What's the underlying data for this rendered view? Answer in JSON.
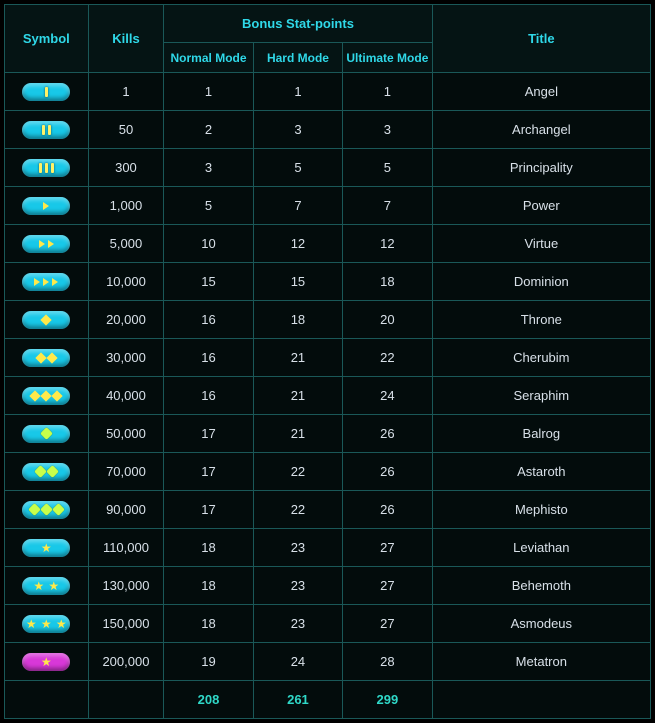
{
  "headers": {
    "symbol": "Symbol",
    "kills": "Kills",
    "bonus": "Bonus Stat-points",
    "normal": "Normal Mode",
    "hard": "Hard Mode",
    "ultimate": "Ultimate Mode",
    "title": "Title"
  },
  "pill_colors": {
    "cyan": "#18c8e8",
    "magenta": "#d838d8"
  },
  "glyph_colors": {
    "bar": "#fff266",
    "chev": "#ffe94a",
    "diam": "#ffe94a",
    "burst": "#c8ff4a",
    "star": "#ffe94a"
  },
  "rows": [
    {
      "pill": "cyan",
      "glyph": "bar",
      "count": 1,
      "kills": "1",
      "normal": "1",
      "hard": "1",
      "ultimate": "1",
      "title": "Angel"
    },
    {
      "pill": "cyan",
      "glyph": "bar",
      "count": 2,
      "kills": "50",
      "normal": "2",
      "hard": "3",
      "ultimate": "3",
      "title": "Archangel"
    },
    {
      "pill": "cyan",
      "glyph": "bar",
      "count": 3,
      "kills": "300",
      "normal": "3",
      "hard": "5",
      "ultimate": "5",
      "title": "Principality"
    },
    {
      "pill": "cyan",
      "glyph": "chev",
      "count": 1,
      "kills": "1,000",
      "normal": "5",
      "hard": "7",
      "ultimate": "7",
      "title": "Power"
    },
    {
      "pill": "cyan",
      "glyph": "chev",
      "count": 2,
      "kills": "5,000",
      "normal": "10",
      "hard": "12",
      "ultimate": "12",
      "title": "Virtue"
    },
    {
      "pill": "cyan",
      "glyph": "chev",
      "count": 3,
      "kills": "10,000",
      "normal": "15",
      "hard": "15",
      "ultimate": "18",
      "title": "Dominion"
    },
    {
      "pill": "cyan",
      "glyph": "diam",
      "count": 1,
      "kills": "20,000",
      "normal": "16",
      "hard": "18",
      "ultimate": "20",
      "title": "Throne"
    },
    {
      "pill": "cyan",
      "glyph": "diam",
      "count": 2,
      "kills": "30,000",
      "normal": "16",
      "hard": "21",
      "ultimate": "22",
      "title": "Cherubim"
    },
    {
      "pill": "cyan",
      "glyph": "diam",
      "count": 3,
      "kills": "40,000",
      "normal": "16",
      "hard": "21",
      "ultimate": "24",
      "title": "Seraphim"
    },
    {
      "pill": "cyan",
      "glyph": "burst",
      "count": 1,
      "kills": "50,000",
      "normal": "17",
      "hard": "21",
      "ultimate": "26",
      "title": "Balrog"
    },
    {
      "pill": "cyan",
      "glyph": "burst",
      "count": 2,
      "kills": "70,000",
      "normal": "17",
      "hard": "22",
      "ultimate": "26",
      "title": "Astaroth"
    },
    {
      "pill": "cyan",
      "glyph": "burst",
      "count": 3,
      "kills": "90,000",
      "normal": "17",
      "hard": "22",
      "ultimate": "26",
      "title": "Mephisto"
    },
    {
      "pill": "cyan",
      "glyph": "star",
      "count": 1,
      "kills": "110,000",
      "normal": "18",
      "hard": "23",
      "ultimate": "27",
      "title": "Leviathan"
    },
    {
      "pill": "cyan",
      "glyph": "star",
      "count": 2,
      "kills": "130,000",
      "normal": "18",
      "hard": "23",
      "ultimate": "27",
      "title": "Behemoth"
    },
    {
      "pill": "cyan",
      "glyph": "star",
      "count": 3,
      "kills": "150,000",
      "normal": "18",
      "hard": "23",
      "ultimate": "27",
      "title": "Asmodeus"
    },
    {
      "pill": "magenta",
      "glyph": "star",
      "count": 1,
      "kills": "200,000",
      "normal": "19",
      "hard": "24",
      "ultimate": "28",
      "title": "Metatron"
    }
  ],
  "totals": {
    "normal": "208",
    "hard": "261",
    "ultimate": "299"
  }
}
